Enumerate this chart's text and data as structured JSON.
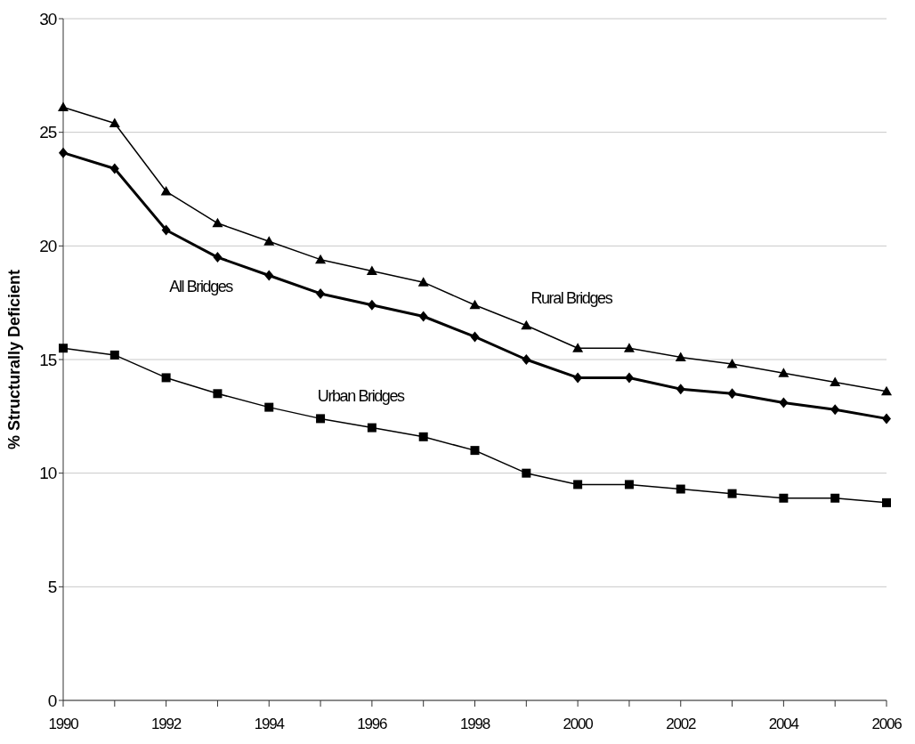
{
  "chart_data": {
    "type": "line",
    "ylabel": "% Structurally Deficient",
    "x": [
      1990,
      1991,
      1992,
      1993,
      1994,
      1995,
      1996,
      1997,
      1998,
      1999,
      2000,
      2001,
      2002,
      2003,
      2004,
      2005,
      2006
    ],
    "series": [
      {
        "name": "Rural Bridges",
        "color": "#000000",
        "marker": "triangle",
        "values": [
          26.1,
          25.4,
          22.4,
          21.0,
          20.2,
          19.4,
          18.9,
          18.4,
          17.4,
          16.5,
          15.5,
          15.5,
          15.1,
          14.8,
          14.4,
          14.0,
          13.6
        ]
      },
      {
        "name": "All Bridges",
        "color": "#000000",
        "marker": "diamond",
        "values": [
          24.1,
          23.4,
          20.7,
          19.5,
          18.7,
          17.9,
          17.4,
          16.9,
          16.0,
          15.0,
          14.2,
          14.2,
          13.7,
          13.5,
          13.1,
          12.8,
          12.4
        ]
      },
      {
        "name": "Urban Bridges",
        "color": "#000000",
        "marker": "square",
        "values": [
          15.5,
          15.2,
          14.2,
          13.5,
          12.9,
          12.4,
          12.0,
          11.6,
          11.0,
          10.0,
          9.5,
          9.5,
          9.3,
          9.1,
          8.9,
          8.9,
          8.7
        ]
      }
    ],
    "xlim": [
      1990,
      2006
    ],
    "xticks": [
      1990,
      {
        "value": 1991,
        "label": null
      },
      1992,
      {
        "value": 1993,
        "label": null
      },
      1994,
      {
        "value": 1995,
        "label": null
      },
      1996,
      {
        "value": 1997,
        "label": null
      },
      1998,
      {
        "value": 1999,
        "label": null
      },
      2000,
      {
        "value": 2001,
        "label": null
      },
      2002,
      {
        "value": 2003,
        "label": null
      },
      2004,
      {
        "value": 2005,
        "label": null
      },
      2006
    ],
    "ylim": [
      0,
      30
    ],
    "yticks": [
      0,
      5,
      10,
      15,
      20,
      25,
      30
    ],
    "grid": "y",
    "line_style": "solid"
  }
}
